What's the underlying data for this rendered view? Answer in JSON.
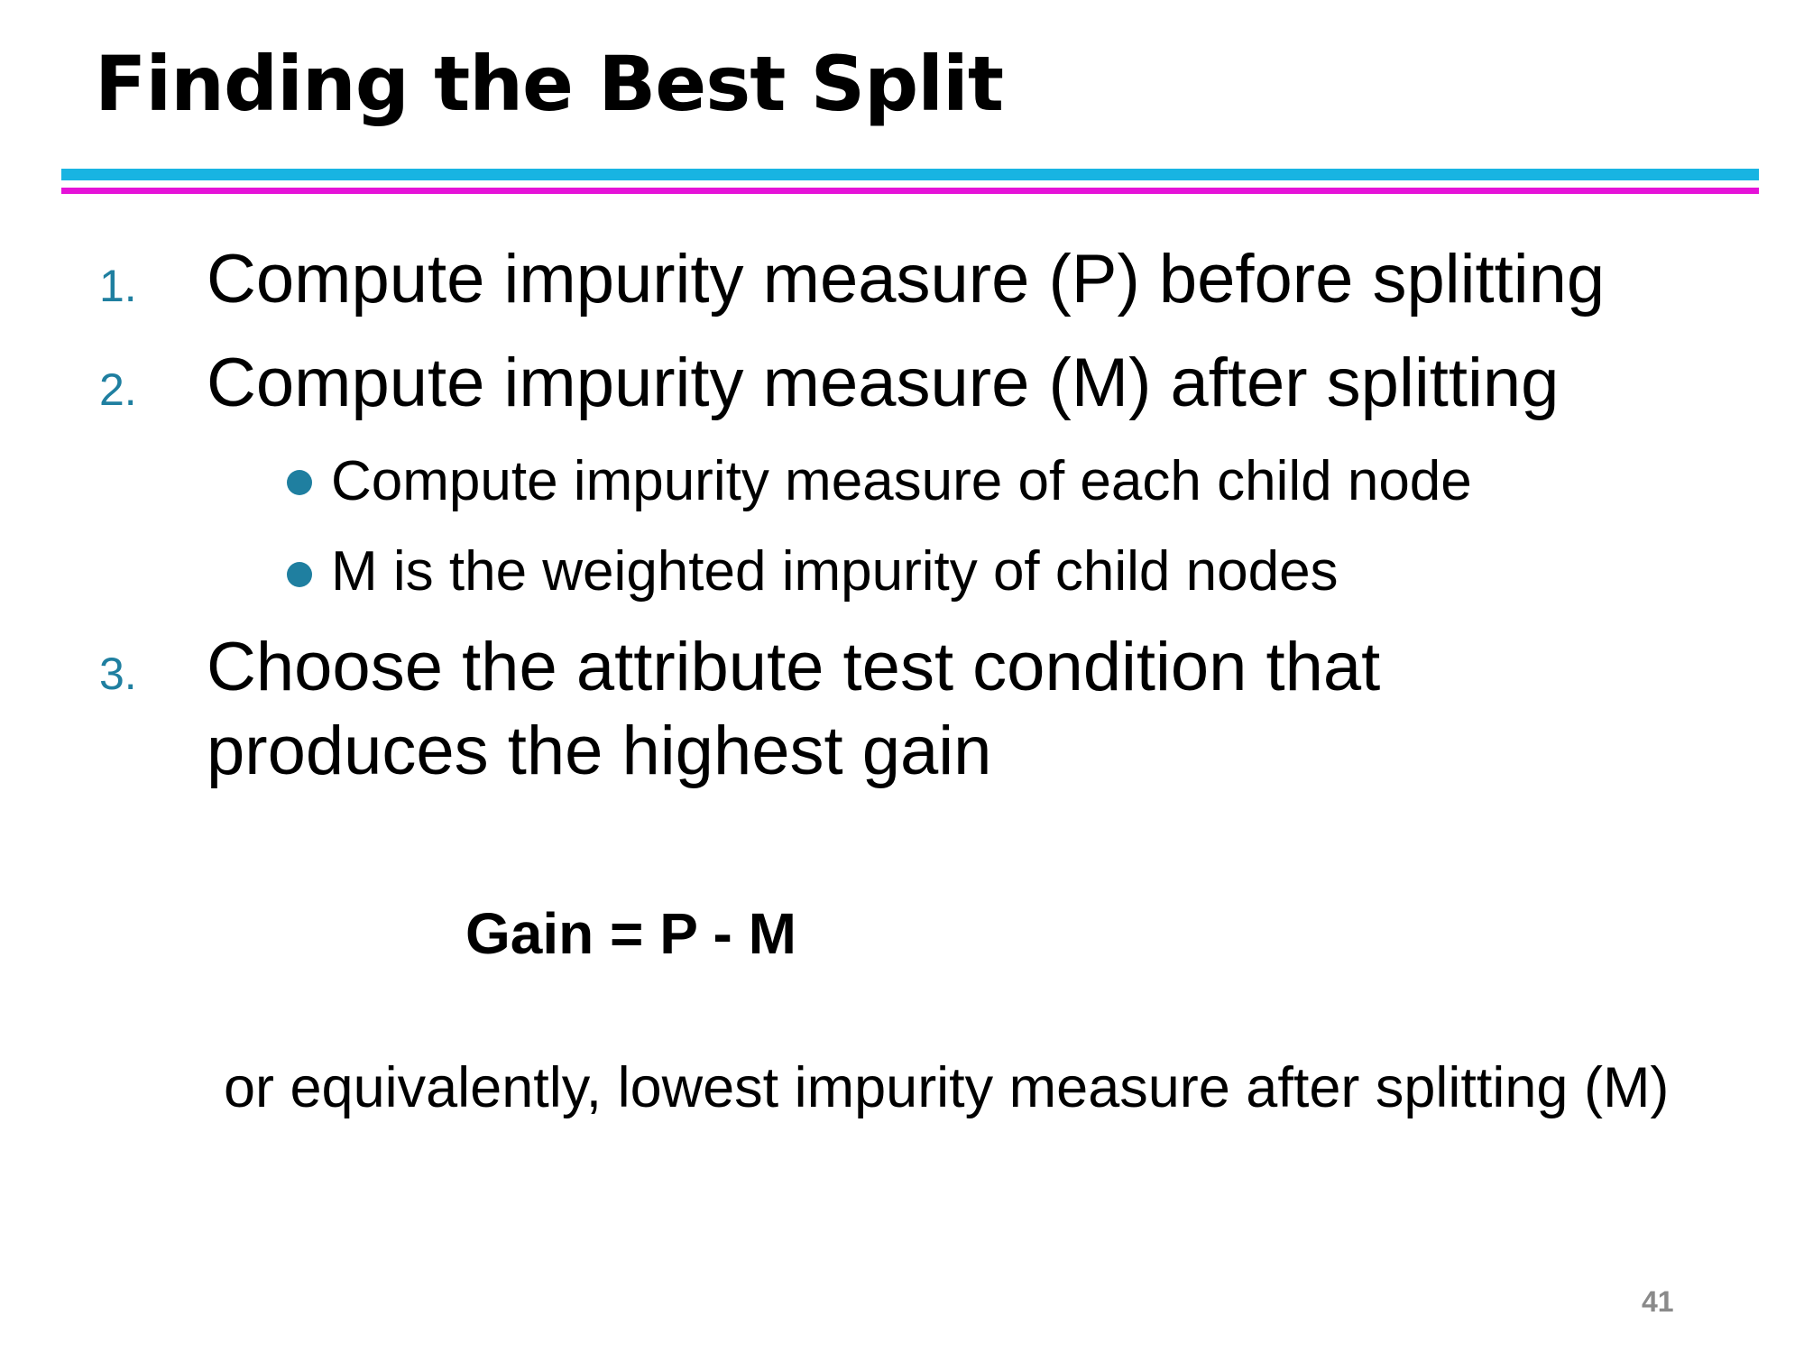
{
  "slide": {
    "title": "Finding the Best Split",
    "steps": [
      {
        "number": "1.",
        "text": "Compute impurity measure (P) before splitting"
      },
      {
        "number": "2.",
        "text": "Compute impurity measure (M) after splitting"
      },
      {
        "number": "3.",
        "line1": "Choose the attribute test condition that",
        "line2": "produces the highest gain"
      }
    ],
    "sub_bullets": [
      "Compute impurity measure of each child node",
      "M is the weighted impurity of child nodes"
    ],
    "formula": "Gain = P - M",
    "note": "or equivalently, lowest impurity measure after splitting (M)",
    "page_number": "41",
    "colors": {
      "rule_top": "#18b4e2",
      "rule_bottom": "#e512d8",
      "accent": "#1f7fa0",
      "page_number": "#8a8a8a"
    }
  }
}
